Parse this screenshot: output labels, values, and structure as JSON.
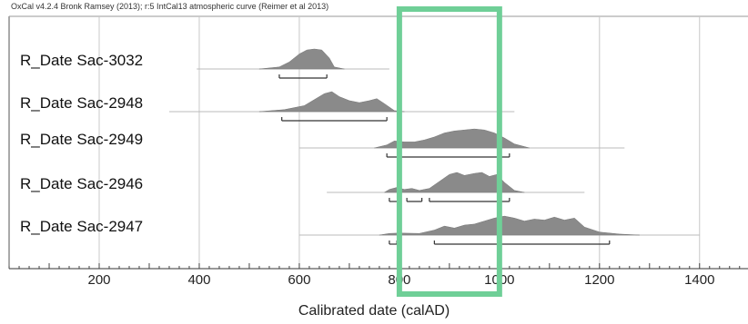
{
  "header": "OxCal v4.2.4 Bronk Ramsey (2013); r:5 IntCal13 atmospheric curve (Reimer et al 2013)",
  "chart_data": {
    "type": "area",
    "title": "",
    "xlabel": "Calibrated date (calAD)",
    "ylabel": "",
    "xlim": [
      20,
      1490
    ],
    "x_ticks": [
      200,
      400,
      600,
      800,
      1000,
      1200,
      1400
    ],
    "grid": true,
    "highlight": {
      "x_range": [
        800,
        1000
      ],
      "color": "#6fcf97"
    },
    "series": [
      {
        "name": "R_Date Sac-3032",
        "likelihood_range": [
          395,
          780
        ],
        "density": [
          [
            520,
            0
          ],
          [
            560,
            0.1
          ],
          [
            580,
            0.35
          ],
          [
            600,
            0.75
          ],
          [
            615,
            0.95
          ],
          [
            630,
            1
          ],
          [
            645,
            0.95
          ],
          [
            660,
            0.55
          ],
          [
            670,
            0.1
          ],
          [
            690,
            0
          ]
        ],
        "hpd": [
          [
            560,
            655
          ]
        ]
      },
      {
        "name": "R_Date Sac-2948",
        "likelihood_range": [
          340,
          1030
        ],
        "density": [
          [
            520,
            0
          ],
          [
            570,
            0.1
          ],
          [
            610,
            0.3
          ],
          [
            630,
            0.6
          ],
          [
            650,
            0.9
          ],
          [
            665,
            1
          ],
          [
            680,
            0.75
          ],
          [
            700,
            0.55
          ],
          [
            720,
            0.45
          ],
          [
            740,
            0.55
          ],
          [
            755,
            0.65
          ],
          [
            770,
            0.4
          ],
          [
            790,
            0.05
          ],
          [
            810,
            0
          ]
        ],
        "hpd": [
          [
            565,
            775
          ]
        ]
      },
      {
        "name": "R_Date Sac-2949",
        "likelihood_range": [
          600,
          1250
        ],
        "density": [
          [
            750,
            0
          ],
          [
            775,
            0.15
          ],
          [
            790,
            0.35
          ],
          [
            810,
            0.3
          ],
          [
            830,
            0.3
          ],
          [
            850,
            0.4
          ],
          [
            870,
            0.55
          ],
          [
            890,
            0.75
          ],
          [
            910,
            0.85
          ],
          [
            930,
            0.9
          ],
          [
            950,
            0.95
          ],
          [
            970,
            0.9
          ],
          [
            990,
            0.75
          ],
          [
            1010,
            0.5
          ],
          [
            1030,
            0.2
          ],
          [
            1060,
            0
          ]
        ],
        "hpd": [
          [
            775,
            1020
          ]
        ]
      },
      {
        "name": "R_Date Sac-2946",
        "likelihood_range": [
          655,
          1170
        ],
        "density": [
          [
            770,
            0
          ],
          [
            780,
            0.15
          ],
          [
            795,
            0.25
          ],
          [
            810,
            0.15
          ],
          [
            825,
            0.2
          ],
          [
            840,
            0.1
          ],
          [
            860,
            0.2
          ],
          [
            880,
            0.55
          ],
          [
            900,
            0.9
          ],
          [
            915,
            1
          ],
          [
            930,
            0.85
          ],
          [
            950,
            0.95
          ],
          [
            965,
            1
          ],
          [
            980,
            0.8
          ],
          [
            995,
            0.9
          ],
          [
            1010,
            0.5
          ],
          [
            1030,
            0.1
          ],
          [
            1050,
            0
          ]
        ],
        "hpd": [
          [
            780,
            800
          ],
          [
            815,
            845
          ],
          [
            860,
            1020
          ]
        ]
      },
      {
        "name": "R_Date Sac-2947",
        "likelihood_range": [
          600,
          1400
        ],
        "density": [
          [
            760,
            0
          ],
          [
            780,
            0.08
          ],
          [
            800,
            0.1
          ],
          [
            840,
            0.08
          ],
          [
            870,
            0.25
          ],
          [
            890,
            0.45
          ],
          [
            910,
            0.35
          ],
          [
            930,
            0.5
          ],
          [
            950,
            0.55
          ],
          [
            970,
            0.7
          ],
          [
            990,
            0.85
          ],
          [
            1010,
            0.95
          ],
          [
            1030,
            0.85
          ],
          [
            1050,
            0.7
          ],
          [
            1070,
            0.8
          ],
          [
            1090,
            0.75
          ],
          [
            1110,
            0.9
          ],
          [
            1130,
            0.75
          ],
          [
            1150,
            0.85
          ],
          [
            1170,
            0.4
          ],
          [
            1200,
            0.15
          ],
          [
            1240,
            0.05
          ],
          [
            1280,
            0
          ]
        ],
        "hpd": [
          [
            780,
            795
          ],
          [
            870,
            1220
          ]
        ]
      }
    ]
  }
}
